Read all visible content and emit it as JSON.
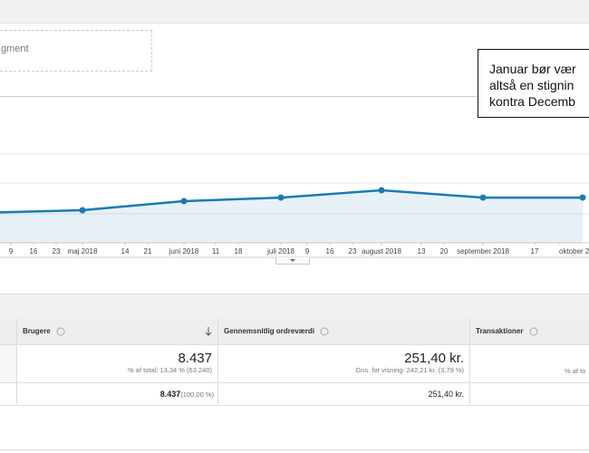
{
  "segment_placeholder": "gment",
  "annotation": {
    "lines": [
      "Januar bør vær",
      "altså en stignin",
      "kontra Decemb"
    ]
  },
  "chart_data": {
    "type": "line",
    "x_tick_labels": [
      "9",
      "16",
      "23",
      "maj 2018",
      "14",
      "21",
      "juni 2018",
      "11",
      "18",
      "juli 2018",
      "9",
      "16",
      "23",
      "august 2018",
      "13",
      "20",
      "september 2018",
      "17",
      "oktober 2"
    ],
    "series": [
      {
        "color": "#1a7ab5",
        "values": [
          21,
          22.8,
          29.1,
          31.6,
          36.7,
          31.6,
          31.6
        ]
      }
    ],
    "ylim": [
      0,
      100
    ]
  },
  "table": {
    "headers": [
      "Brugere",
      "Gennemsnitlig ordreværdi",
      "Transaktioner"
    ],
    "rows": [
      [
        {
          "value": "8.437",
          "note": "% af total: 13,34 % (63.240)"
        },
        {
          "value": "251,40 kr.",
          "note": "Gns. for visning: 242,21 kr. (3,79 %)"
        },
        {
          "note": "% af to"
        }
      ],
      [
        {
          "value": "8.437",
          "note": "(100,00 %)"
        },
        {
          "value": "251,40 kr."
        }
      ]
    ]
  }
}
